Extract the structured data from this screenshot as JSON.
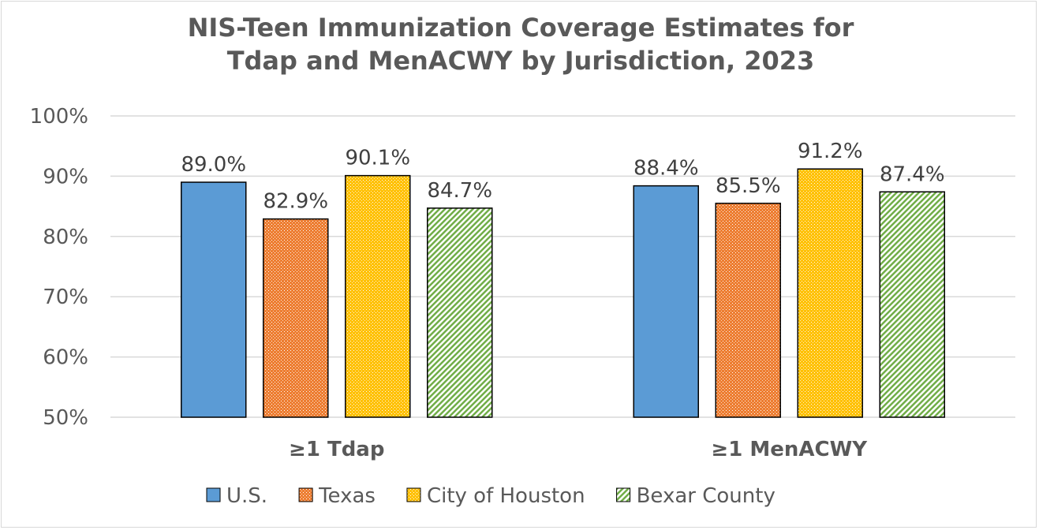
{
  "chart_data": {
    "type": "bar",
    "title": [
      "NIS-Teen Immunization Coverage Estimates for",
      "Tdap and MenACWY by Jurisdiction, 2023"
    ],
    "categories": [
      "≥1 Tdap",
      "≥1 MenACWY"
    ],
    "series": [
      {
        "name": "U.S.",
        "values": [
          89.0,
          88.4
        ],
        "color": "#5b9bd5",
        "pattern": "solid"
      },
      {
        "name": "Texas",
        "values": [
          82.9,
          85.5
        ],
        "color": "#ed7d31",
        "pattern": "dotted-grid"
      },
      {
        "name": "City of Houston",
        "values": [
          90.1,
          91.2
        ],
        "color": "#ffc000",
        "pattern": "small-dots"
      },
      {
        "name": "Bexar County",
        "values": [
          84.7,
          87.4
        ],
        "color": "#70ad47",
        "pattern": "diagonal-stripes"
      }
    ],
    "data_labels": [
      [
        "89.0%",
        "88.4%"
      ],
      [
        "82.9%",
        "85.5%"
      ],
      [
        "90.1%",
        "91.2%"
      ],
      [
        "84.7%",
        "87.4%"
      ]
    ],
    "ylim": [
      50,
      100
    ],
    "yticks": [
      "50%",
      "60%",
      "70%",
      "80%",
      "90%",
      "100%"
    ],
    "ytick_values": [
      50,
      60,
      70,
      80,
      90,
      100
    ],
    "grid": true,
    "legend": "bottom"
  }
}
